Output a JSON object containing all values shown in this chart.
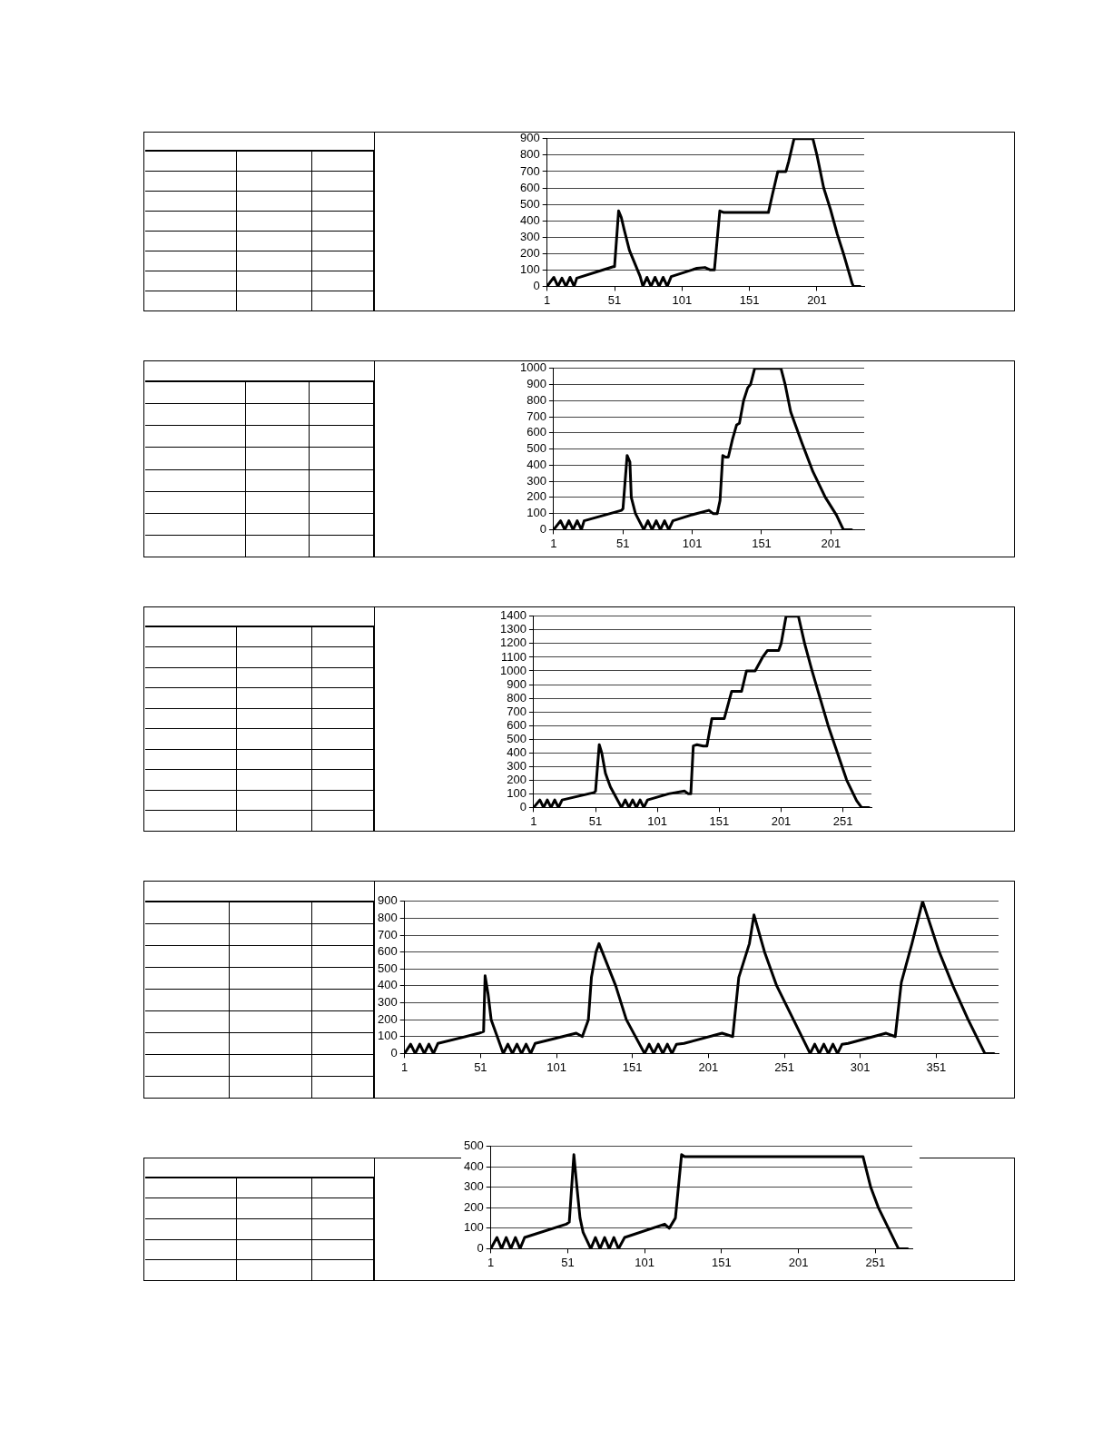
{
  "chart_data": [
    {
      "type": "line",
      "color": "#000000",
      "grid": "y",
      "xlim": [
        1,
        236
      ],
      "xticks": [
        1,
        51,
        101,
        151,
        201
      ],
      "ylim": [
        0,
        900
      ],
      "yticks": [
        0,
        100,
        200,
        300,
        400,
        500,
        600,
        700,
        800,
        900
      ],
      "x": [
        1,
        6,
        9,
        12,
        15,
        18,
        21,
        23,
        50,
        51,
        54,
        56,
        58,
        62,
        70,
        72,
        75,
        78,
        81,
        84,
        87,
        90,
        93,
        112,
        118,
        122,
        125,
        129,
        132,
        165,
        168,
        172,
        175,
        178,
        180,
        184,
        198,
        201,
        206,
        211,
        216,
        221,
        227,
        228,
        233
      ],
      "values": [
        0,
        55,
        0,
        50,
        0,
        55,
        0,
        50,
        120,
        120,
        460,
        420,
        350,
        220,
        60,
        0,
        55,
        0,
        55,
        0,
        55,
        0,
        60,
        110,
        115,
        100,
        100,
        460,
        450,
        450,
        560,
        700,
        700,
        700,
        760,
        900,
        900,
        800,
        600,
        470,
        320,
        190,
        20,
        0,
        0
      ]
    },
    {
      "type": "line",
      "color": "#000000",
      "grid": "y",
      "xlim": [
        1,
        225
      ],
      "xticks": [
        1,
        51,
        101,
        151,
        201
      ],
      "ylim": [
        0,
        1000
      ],
      "yticks": [
        0,
        100,
        200,
        300,
        400,
        500,
        600,
        700,
        800,
        900,
        1000
      ],
      "x": [
        1,
        6,
        9,
        12,
        15,
        18,
        21,
        23,
        50,
        51,
        54,
        56,
        57,
        60,
        66,
        69,
        72,
        75,
        78,
        81,
        84,
        87,
        100,
        113,
        116,
        119,
        121,
        123,
        125,
        127,
        130,
        133,
        135,
        138,
        141,
        143,
        146,
        165,
        168,
        172,
        180,
        188,
        197,
        205,
        210,
        216
      ],
      "values": [
        0,
        55,
        0,
        55,
        0,
        55,
        0,
        55,
        120,
        130,
        460,
        420,
        200,
        100,
        0,
        55,
        0,
        55,
        0,
        55,
        0,
        55,
        90,
        120,
        100,
        100,
        180,
        460,
        450,
        450,
        560,
        650,
        660,
        800,
        880,
        900,
        1000,
        1000,
        900,
        730,
        540,
        360,
        200,
        90,
        0,
        0
      ]
    },
    {
      "type": "line",
      "color": "#000000",
      "grid": "y",
      "xlim": [
        1,
        274
      ],
      "xticks": [
        1,
        51,
        101,
        151,
        201,
        251
      ],
      "ylim": [
        0,
        1400
      ],
      "yticks": [
        0,
        100,
        200,
        300,
        400,
        500,
        600,
        700,
        800,
        900,
        1000,
        1100,
        1200,
        1300,
        1400
      ],
      "x": [
        1,
        6,
        9,
        12,
        15,
        18,
        21,
        24,
        50,
        51,
        54,
        56,
        59,
        63,
        72,
        75,
        78,
        81,
        84,
        87,
        90,
        93,
        110,
        123,
        126,
        128,
        130,
        133,
        138,
        141,
        145,
        155,
        158,
        161,
        169,
        173,
        180,
        186,
        190,
        199,
        201,
        205,
        215,
        220,
        226,
        239,
        254,
        262,
        266,
        272
      ],
      "values": [
        0,
        55,
        0,
        55,
        0,
        55,
        0,
        55,
        110,
        120,
        460,
        400,
        250,
        150,
        0,
        55,
        0,
        55,
        0,
        55,
        0,
        55,
        100,
        120,
        100,
        100,
        450,
        460,
        450,
        450,
        650,
        650,
        750,
        850,
        850,
        1000,
        1000,
        1100,
        1150,
        1150,
        1200,
        1400,
        1400,
        1200,
        1000,
        600,
        200,
        50,
        0,
        0
      ]
    },
    {
      "type": "line",
      "color": "#000000",
      "grid": "y",
      "xlim": [
        1,
        392
      ],
      "xticks": [
        1,
        51,
        101,
        151,
        201,
        251,
        301,
        351
      ],
      "ylim": [
        0,
        900
      ],
      "yticks": [
        0,
        100,
        200,
        300,
        400,
        500,
        600,
        700,
        800,
        900
      ],
      "x": [
        1,
        5,
        8,
        11,
        14,
        17,
        20,
        23,
        50,
        53,
        54,
        56,
        58,
        62,
        66,
        69,
        72,
        75,
        78,
        81,
        84,
        87,
        114,
        118,
        122,
        124,
        127,
        129,
        140,
        147,
        159,
        162,
        165,
        168,
        171,
        174,
        177,
        180,
        185,
        210,
        217,
        221,
        228,
        231,
        238,
        246,
        257,
        268,
        271,
        274,
        277,
        280,
        283,
        286,
        289,
        293,
        318,
        324,
        328,
        335,
        342,
        353,
        362,
        372,
        383,
        389
      ],
      "values": [
        0,
        55,
        0,
        55,
        0,
        55,
        0,
        60,
        120,
        130,
        460,
        350,
        200,
        100,
        0,
        55,
        0,
        55,
        0,
        55,
        0,
        60,
        120,
        100,
        200,
        450,
        600,
        650,
        400,
        200,
        0,
        55,
        0,
        55,
        0,
        55,
        0,
        55,
        60,
        120,
        100,
        450,
        650,
        820,
        600,
        400,
        200,
        0,
        55,
        0,
        55,
        0,
        55,
        0,
        55,
        60,
        120,
        100,
        420,
        650,
        900,
        600,
        400,
        200,
        0,
        0
      ]
    },
    {
      "type": "line",
      "color": "#000000",
      "grid": "y",
      "xlim": [
        1,
        275
      ],
      "xticks": [
        1,
        51,
        101,
        151,
        201,
        251
      ],
      "ylim": [
        0,
        500
      ],
      "yticks": [
        0,
        100,
        200,
        300,
        400,
        500
      ],
      "x": [
        1,
        5,
        8,
        11,
        14,
        17,
        20,
        23,
        50,
        52,
        55,
        57,
        59,
        61,
        66,
        69,
        72,
        75,
        78,
        81,
        84,
        88,
        114,
        117,
        121,
        125,
        127,
        243,
        248,
        253,
        266,
        272
      ],
      "values": [
        0,
        55,
        0,
        55,
        0,
        55,
        0,
        55,
        120,
        130,
        460,
        300,
        150,
        80,
        0,
        55,
        0,
        55,
        0,
        55,
        0,
        55,
        120,
        100,
        150,
        460,
        450,
        450,
        300,
        200,
        0,
        0
      ]
    }
  ]
}
